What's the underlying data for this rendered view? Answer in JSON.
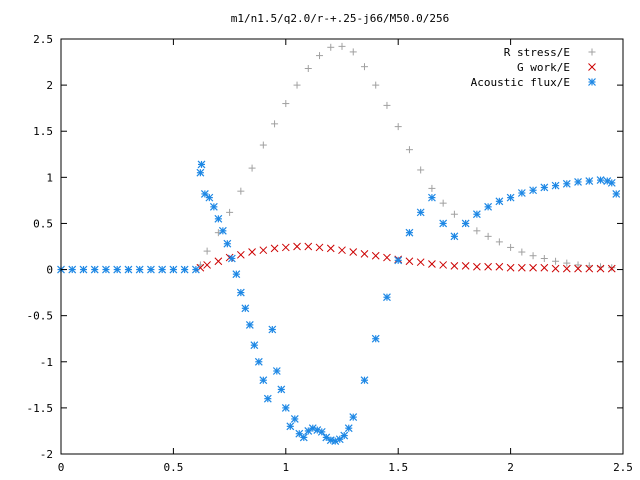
{
  "chart_data": {
    "type": "scatter",
    "title": "m1/n1.5/q2.0/r-+.25-j66/M50.0/256",
    "xlabel": "",
    "ylabel": "",
    "xlim": [
      0,
      2.5
    ],
    "ylim": [
      -2,
      2.5
    ],
    "x_ticks": [
      "0",
      "0.5",
      "1",
      "1.5",
      "2",
      "2.5"
    ],
    "y_ticks": [
      "2.5",
      "2",
      "1.5",
      "1",
      "0.5",
      "0",
      "-0.5",
      "-1",
      "-1.5",
      "-2"
    ],
    "legend_position": "top-right",
    "grid": false,
    "series": [
      {
        "name": "R stress/E",
        "marker": "plus",
        "color": "#a0a0a0",
        "x": [
          0.62,
          0.65,
          0.7,
          0.75,
          0.8,
          0.85,
          0.9,
          0.95,
          1.0,
          1.05,
          1.1,
          1.15,
          1.2,
          1.25,
          1.3,
          1.35,
          1.4,
          1.45,
          1.5,
          1.55,
          1.6,
          1.65,
          1.7,
          1.75,
          1.8,
          1.85,
          1.9,
          1.95,
          2.0,
          2.05,
          2.1,
          2.15,
          2.2,
          2.25,
          2.3,
          2.35,
          2.4,
          2.45
        ],
        "y": [
          0.05,
          0.2,
          0.4,
          0.62,
          0.85,
          1.1,
          1.35,
          1.58,
          1.8,
          2.0,
          2.18,
          2.32,
          2.41,
          2.42,
          2.36,
          2.2,
          2.0,
          1.78,
          1.55,
          1.3,
          1.08,
          0.88,
          0.72,
          0.6,
          0.5,
          0.42,
          0.36,
          0.3,
          0.24,
          0.19,
          0.15,
          0.12,
          0.09,
          0.07,
          0.05,
          0.04,
          0.03,
          0.02
        ]
      },
      {
        "name": "G work/E",
        "marker": "cross",
        "color": "#cc0000",
        "x": [
          0.62,
          0.65,
          0.7,
          0.75,
          0.8,
          0.85,
          0.9,
          0.95,
          1.0,
          1.05,
          1.1,
          1.15,
          1.2,
          1.25,
          1.3,
          1.35,
          1.4,
          1.45,
          1.5,
          1.55,
          1.6,
          1.65,
          1.7,
          1.75,
          1.8,
          1.85,
          1.9,
          1.95,
          2.0,
          2.05,
          2.1,
          2.15,
          2.2,
          2.25,
          2.3,
          2.35,
          2.4,
          2.45
        ],
        "y": [
          0.02,
          0.05,
          0.09,
          0.13,
          0.16,
          0.19,
          0.21,
          0.23,
          0.24,
          0.25,
          0.25,
          0.24,
          0.23,
          0.21,
          0.19,
          0.17,
          0.15,
          0.13,
          0.11,
          0.09,
          0.08,
          0.06,
          0.05,
          0.04,
          0.04,
          0.03,
          0.03,
          0.03,
          0.02,
          0.02,
          0.02,
          0.02,
          0.01,
          0.01,
          0.01,
          0.01,
          0.01,
          0.01
        ]
      },
      {
        "name": "Acoustic flux/E",
        "marker": "asterisk",
        "color": "#1e88e5",
        "x": [
          0.0,
          0.05,
          0.1,
          0.15,
          0.2,
          0.25,
          0.3,
          0.35,
          0.4,
          0.45,
          0.5,
          0.55,
          0.6,
          0.62,
          0.625,
          0.64,
          0.66,
          0.68,
          0.7,
          0.72,
          0.74,
          0.76,
          0.78,
          0.8,
          0.82,
          0.84,
          0.86,
          0.88,
          0.9,
          0.92,
          0.94,
          0.96,
          0.98,
          1.0,
          1.02,
          1.04,
          1.06,
          1.08,
          1.1,
          1.12,
          1.14,
          1.16,
          1.18,
          1.2,
          1.22,
          1.24,
          1.26,
          1.28,
          1.3,
          1.35,
          1.4,
          1.45,
          1.5,
          1.55,
          1.6,
          1.65,
          1.7,
          1.75,
          1.8,
          1.85,
          1.9,
          1.95,
          2.0,
          2.05,
          2.1,
          2.15,
          2.2,
          2.25,
          2.3,
          2.35,
          2.4,
          2.43,
          2.45,
          2.47
        ],
        "y": [
          0,
          0,
          0,
          0,
          0,
          0,
          0,
          0,
          0,
          0,
          0,
          0,
          0,
          1.05,
          1.14,
          0.82,
          0.78,
          0.68,
          0.55,
          0.42,
          0.28,
          0.12,
          -0.05,
          -0.25,
          -0.42,
          -0.6,
          -0.82,
          -1.0,
          -1.2,
          -1.4,
          -0.65,
          -1.1,
          -1.3,
          -1.5,
          -1.7,
          -1.62,
          -1.78,
          -1.82,
          -1.75,
          -1.72,
          -1.74,
          -1.76,
          -1.82,
          -1.85,
          -1.86,
          -1.84,
          -1.8,
          -1.72,
          -1.6,
          -1.2,
          -0.75,
          -0.3,
          0.1,
          0.4,
          0.62,
          0.78,
          0.5,
          0.36,
          0.5,
          0.6,
          0.68,
          0.74,
          0.78,
          0.83,
          0.86,
          0.89,
          0.91,
          0.93,
          0.95,
          0.96,
          0.97,
          0.96,
          0.94,
          0.82
        ]
      }
    ]
  }
}
